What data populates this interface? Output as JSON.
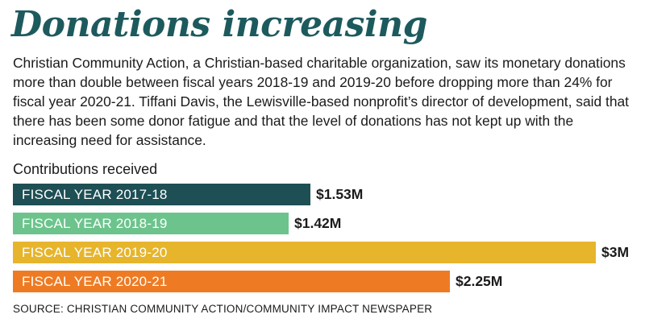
{
  "headline": "Donations increasing",
  "dek": "Christian Community Action, a Christian-based charitable organization, saw its monetary donations more than double between fiscal years 2018-19 and 2019-20 before dropping more than 24% for fiscal year 2020-21. Tiffani Davis, the Lewisville-based nonprofit’s director of development, said that there has been some donor fatigue and that the level of donations has not kept up with the increasing need for assistance.",
  "source": "SOURCE: CHRISTIAN COMMUNITY ACTION/COMMUNITY IMPACT NEWSPAPER",
  "chart_data": {
    "type": "bar",
    "orientation": "horizontal",
    "title": "Contributions received",
    "unit": "millions of dollars",
    "categories": [
      "FISCAL YEAR 2017-18",
      "FISCAL YEAR 2018-19",
      "FISCAL YEAR 2019-20",
      "FISCAL YEAR 2020-21"
    ],
    "values": [
      1.53,
      1.42,
      3,
      2.25
    ],
    "value_labels": [
      "$1.53M",
      "$1.42M",
      "$3M",
      "$2.25M"
    ],
    "colors": [
      "#1d4f55",
      "#6cc48c",
      "#e6b52c",
      "#ee7b23"
    ],
    "xlim": [
      0,
      3
    ],
    "grid": false,
    "legend": "none"
  }
}
